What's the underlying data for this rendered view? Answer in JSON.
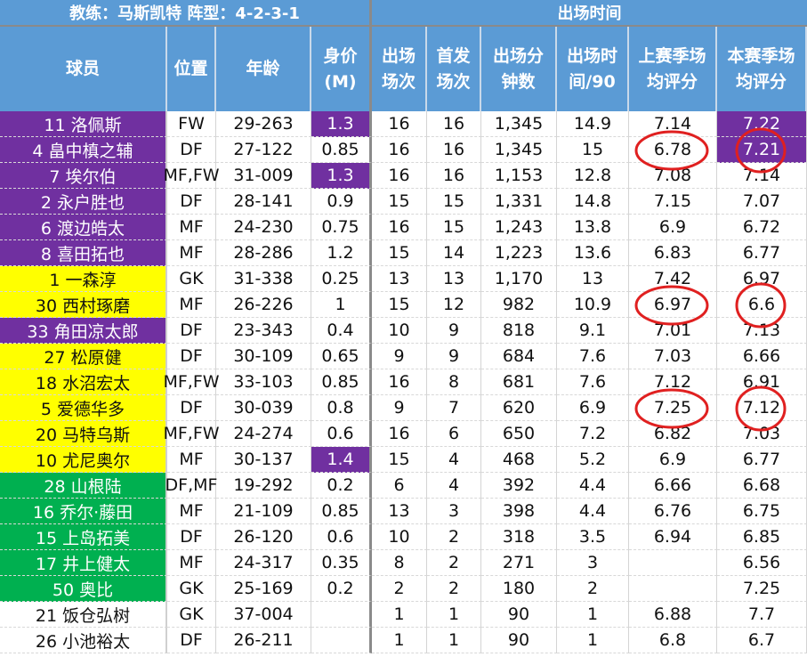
{
  "title_left": "教练：马斯凯特   阵型：4-2-3-1",
  "title_right": "出场时间",
  "headers": [
    "球员",
    "位置",
    "年龄",
    "身价\n(M)",
    "出场\n场次",
    "首发\n场次",
    "出场分\n钟数",
    "出场时\n间/90",
    "上赛季场\n均评分",
    "本赛季场\n均评分"
  ],
  "colors": {
    "header": "#5b9bd5",
    "purple": "#7030a0",
    "yellow": "#ffff00",
    "green": "#00b050",
    "circle": "#e02020"
  },
  "rows": [
    {
      "name": "11 洛佩斯",
      "pos": "FW",
      "age": "29-263",
      "value": "1.3",
      "apps": "16",
      "starts": "16",
      "mins": "1,345",
      "per90": "14.9",
      "last": "7.14",
      "this": "7.22",
      "name_color": "purple",
      "value_hl": true,
      "this_hl": true
    },
    {
      "name": "4 畠中槙之辅",
      "pos": "DF",
      "age": "27-122",
      "value": "0.85",
      "apps": "16",
      "starts": "16",
      "mins": "1,345",
      "per90": "15",
      "last": "6.78",
      "this": "7.21",
      "name_color": "purple",
      "this_hl": true,
      "circle_last": true,
      "circle_this": true
    },
    {
      "name": "7 埃尔伯",
      "pos": "MF,FW",
      "age": "31-009",
      "value": "1.3",
      "apps": "16",
      "starts": "16",
      "mins": "1,153",
      "per90": "12.8",
      "last": "7.08",
      "this": "7.14",
      "name_color": "purple",
      "value_hl": true
    },
    {
      "name": "2 永户胜也",
      "pos": "DF",
      "age": "28-141",
      "value": "0.9",
      "apps": "15",
      "starts": "15",
      "mins": "1,331",
      "per90": "14.8",
      "last": "7.15",
      "this": "7.07",
      "name_color": "purple"
    },
    {
      "name": "6 渡边皓太",
      "pos": "MF",
      "age": "24-230",
      "value": "0.75",
      "apps": "16",
      "starts": "15",
      "mins": "1,243",
      "per90": "13.8",
      "last": "6.9",
      "this": "6.72",
      "name_color": "purple"
    },
    {
      "name": "8 喜田拓也",
      "pos": "MF",
      "age": "28-286",
      "value": "1.2",
      "apps": "15",
      "starts": "14",
      "mins": "1,223",
      "per90": "13.6",
      "last": "6.83",
      "this": "6.77",
      "name_color": "purple"
    },
    {
      "name": "1 一森淳",
      "pos": "GK",
      "age": "31-338",
      "value": "0.25",
      "apps": "13",
      "starts": "13",
      "mins": "1,170",
      "per90": "13",
      "last": "7.42",
      "this": "6.97",
      "name_color": "yellow"
    },
    {
      "name": "30 西村琢磨",
      "pos": "MF",
      "age": "26-226",
      "value": "1",
      "apps": "15",
      "starts": "12",
      "mins": "982",
      "per90": "10.9",
      "last": "6.97",
      "this": "6.6",
      "name_color": "yellow",
      "circle_last": true,
      "circle_this": true
    },
    {
      "name": "33 角田凉太郎",
      "pos": "DF",
      "age": "23-343",
      "value": "0.4",
      "apps": "10",
      "starts": "9",
      "mins": "818",
      "per90": "9.1",
      "last": "7.01",
      "this": "7.13",
      "name_color": "purple"
    },
    {
      "name": "27 松原健",
      "pos": "DF",
      "age": "30-109",
      "value": "0.65",
      "apps": "9",
      "starts": "9",
      "mins": "684",
      "per90": "7.6",
      "last": "7.03",
      "this": "6.66",
      "name_color": "yellow"
    },
    {
      "name": "18 水沼宏太",
      "pos": "MF,FW",
      "age": "33-103",
      "value": "0.85",
      "apps": "16",
      "starts": "8",
      "mins": "681",
      "per90": "7.6",
      "last": "7.12",
      "this": "6.91",
      "name_color": "yellow"
    },
    {
      "name": "5 爱德华多",
      "pos": "DF",
      "age": "30-039",
      "value": "0.8",
      "apps": "9",
      "starts": "7",
      "mins": "620",
      "per90": "6.9",
      "last": "7.25",
      "this": "7.12",
      "name_color": "yellow",
      "circle_last": true,
      "circle_this": true
    },
    {
      "name": "20 马特乌斯",
      "pos": "MF,FW",
      "age": "24-274",
      "value": "0.6",
      "apps": "16",
      "starts": "6",
      "mins": "650",
      "per90": "7.2",
      "last": "6.82",
      "this": "7.03",
      "name_color": "yellow"
    },
    {
      "name": "10 尤尼奥尔",
      "pos": "MF",
      "age": "30-137",
      "value": "1.4",
      "apps": "15",
      "starts": "4",
      "mins": "468",
      "per90": "5.2",
      "last": "6.9",
      "this": "6.77",
      "name_color": "yellow",
      "value_hl": true
    },
    {
      "name": "28 山根陆",
      "pos": "DF,MF",
      "age": "19-292",
      "value": "0.2",
      "apps": "6",
      "starts": "4",
      "mins": "392",
      "per90": "4.4",
      "last": "6.66",
      "this": "6.68",
      "name_color": "green"
    },
    {
      "name": "16 乔尔·藤田",
      "pos": "MF",
      "age": "21-109",
      "value": "0.85",
      "apps": "13",
      "starts": "3",
      "mins": "398",
      "per90": "4.4",
      "last": "6.76",
      "this": "6.75",
      "name_color": "green"
    },
    {
      "name": "15 上岛拓美",
      "pos": "DF",
      "age": "26-120",
      "value": "0.6",
      "apps": "10",
      "starts": "2",
      "mins": "318",
      "per90": "3.5",
      "last": "6.94",
      "this": "6.85",
      "name_color": "green"
    },
    {
      "name": "17 井上健太",
      "pos": "MF",
      "age": "24-317",
      "value": "0.35",
      "apps": "8",
      "starts": "2",
      "mins": "271",
      "per90": "3",
      "last": "",
      "this": "6.56",
      "name_color": "green"
    },
    {
      "name": "50 奥比",
      "pos": "GK",
      "age": "25-169",
      "value": "0.2",
      "apps": "2",
      "starts": "2",
      "mins": "180",
      "per90": "2",
      "last": "",
      "this": "7.25",
      "name_color": "green"
    },
    {
      "name": "21 饭仓弘树",
      "pos": "GK",
      "age": "37-004",
      "value": "",
      "apps": "1",
      "starts": "1",
      "mins": "90",
      "per90": "1",
      "last": "6.88",
      "this": "7.7",
      "name_color": "none"
    },
    {
      "name": "26 小池裕太",
      "pos": "DF",
      "age": "26-211",
      "value": "",
      "apps": "1",
      "starts": "1",
      "mins": "90",
      "per90": "1",
      "last": "6.8",
      "this": "6.7",
      "name_color": "none"
    }
  ]
}
